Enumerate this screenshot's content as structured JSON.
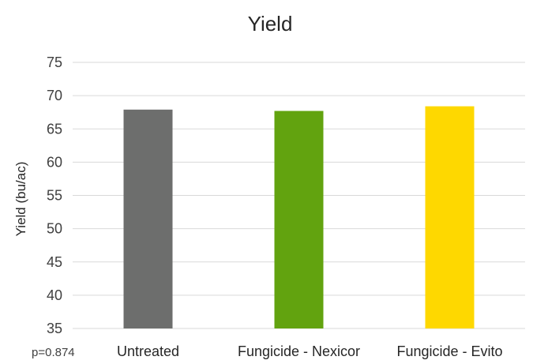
{
  "chart_data": {
    "type": "bar",
    "title": "Yield",
    "xlabel": "",
    "ylabel": "Yield (bu/ac)",
    "categories": [
      "Untreated",
      "Fungicide - Nexicor",
      "Fungicide - Evito"
    ],
    "values": [
      67.9,
      67.7,
      68.4
    ],
    "colors": [
      "#6d6e6d",
      "#62a30f",
      "#fed800"
    ],
    "ylim": [
      35,
      75
    ],
    "yticks": [
      "35",
      "40",
      "45",
      "50",
      "55",
      "60",
      "65",
      "70",
      "75"
    ],
    "grid": true,
    "legend": "none",
    "annotation": "p=0.874"
  }
}
